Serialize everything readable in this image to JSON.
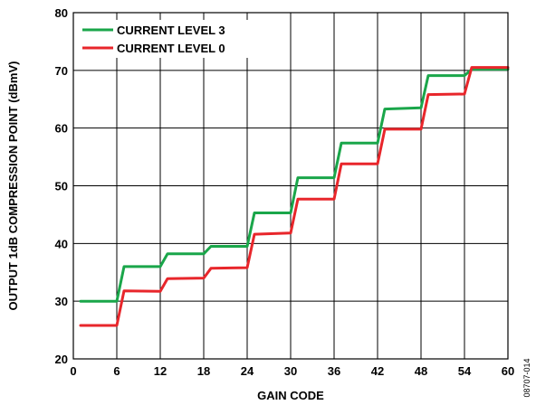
{
  "chart_data": {
    "type": "line",
    "title": "",
    "xlabel": "GAIN CODE",
    "ylabel": "OUTPUT 1dB COMPRESSION POINT (dBmV)",
    "xlim": [
      0,
      60
    ],
    "ylim": [
      20,
      80
    ],
    "xticks": [
      "0",
      "6",
      "12",
      "18",
      "24",
      "30",
      "36",
      "42",
      "48",
      "54",
      "60"
    ],
    "yticks": [
      "20",
      "30",
      "40",
      "50",
      "60",
      "70",
      "80"
    ],
    "grid": true,
    "legend_position": "top-left",
    "series": [
      {
        "name": "CURRENT LEVEL 3",
        "color": "#1aa64a",
        "x": [
          1,
          6,
          7,
          12,
          13,
          18,
          19,
          24,
          25,
          30,
          31,
          36,
          37,
          42,
          43,
          48,
          49,
          54,
          55,
          60
        ],
        "y": [
          30.0,
          30.0,
          36.0,
          36.0,
          38.2,
          38.2,
          39.5,
          39.5,
          45.3,
          45.3,
          51.4,
          51.4,
          57.4,
          57.4,
          63.3,
          63.5,
          69.1,
          69.1,
          70.2,
          70.2
        ]
      },
      {
        "name": "CURRENT LEVEL 0",
        "color": "#e8262b",
        "x": [
          1,
          6,
          7,
          12,
          13,
          18,
          19,
          24,
          25,
          30,
          31,
          36,
          37,
          42,
          43,
          48,
          49,
          54,
          55,
          60
        ],
        "y": [
          25.8,
          25.8,
          31.8,
          31.7,
          33.9,
          34.0,
          35.7,
          35.8,
          41.6,
          41.8,
          47.7,
          47.7,
          53.8,
          53.8,
          59.8,
          59.8,
          65.8,
          65.9,
          70.5,
          70.5
        ]
      }
    ]
  },
  "figure_code": "08707-014"
}
